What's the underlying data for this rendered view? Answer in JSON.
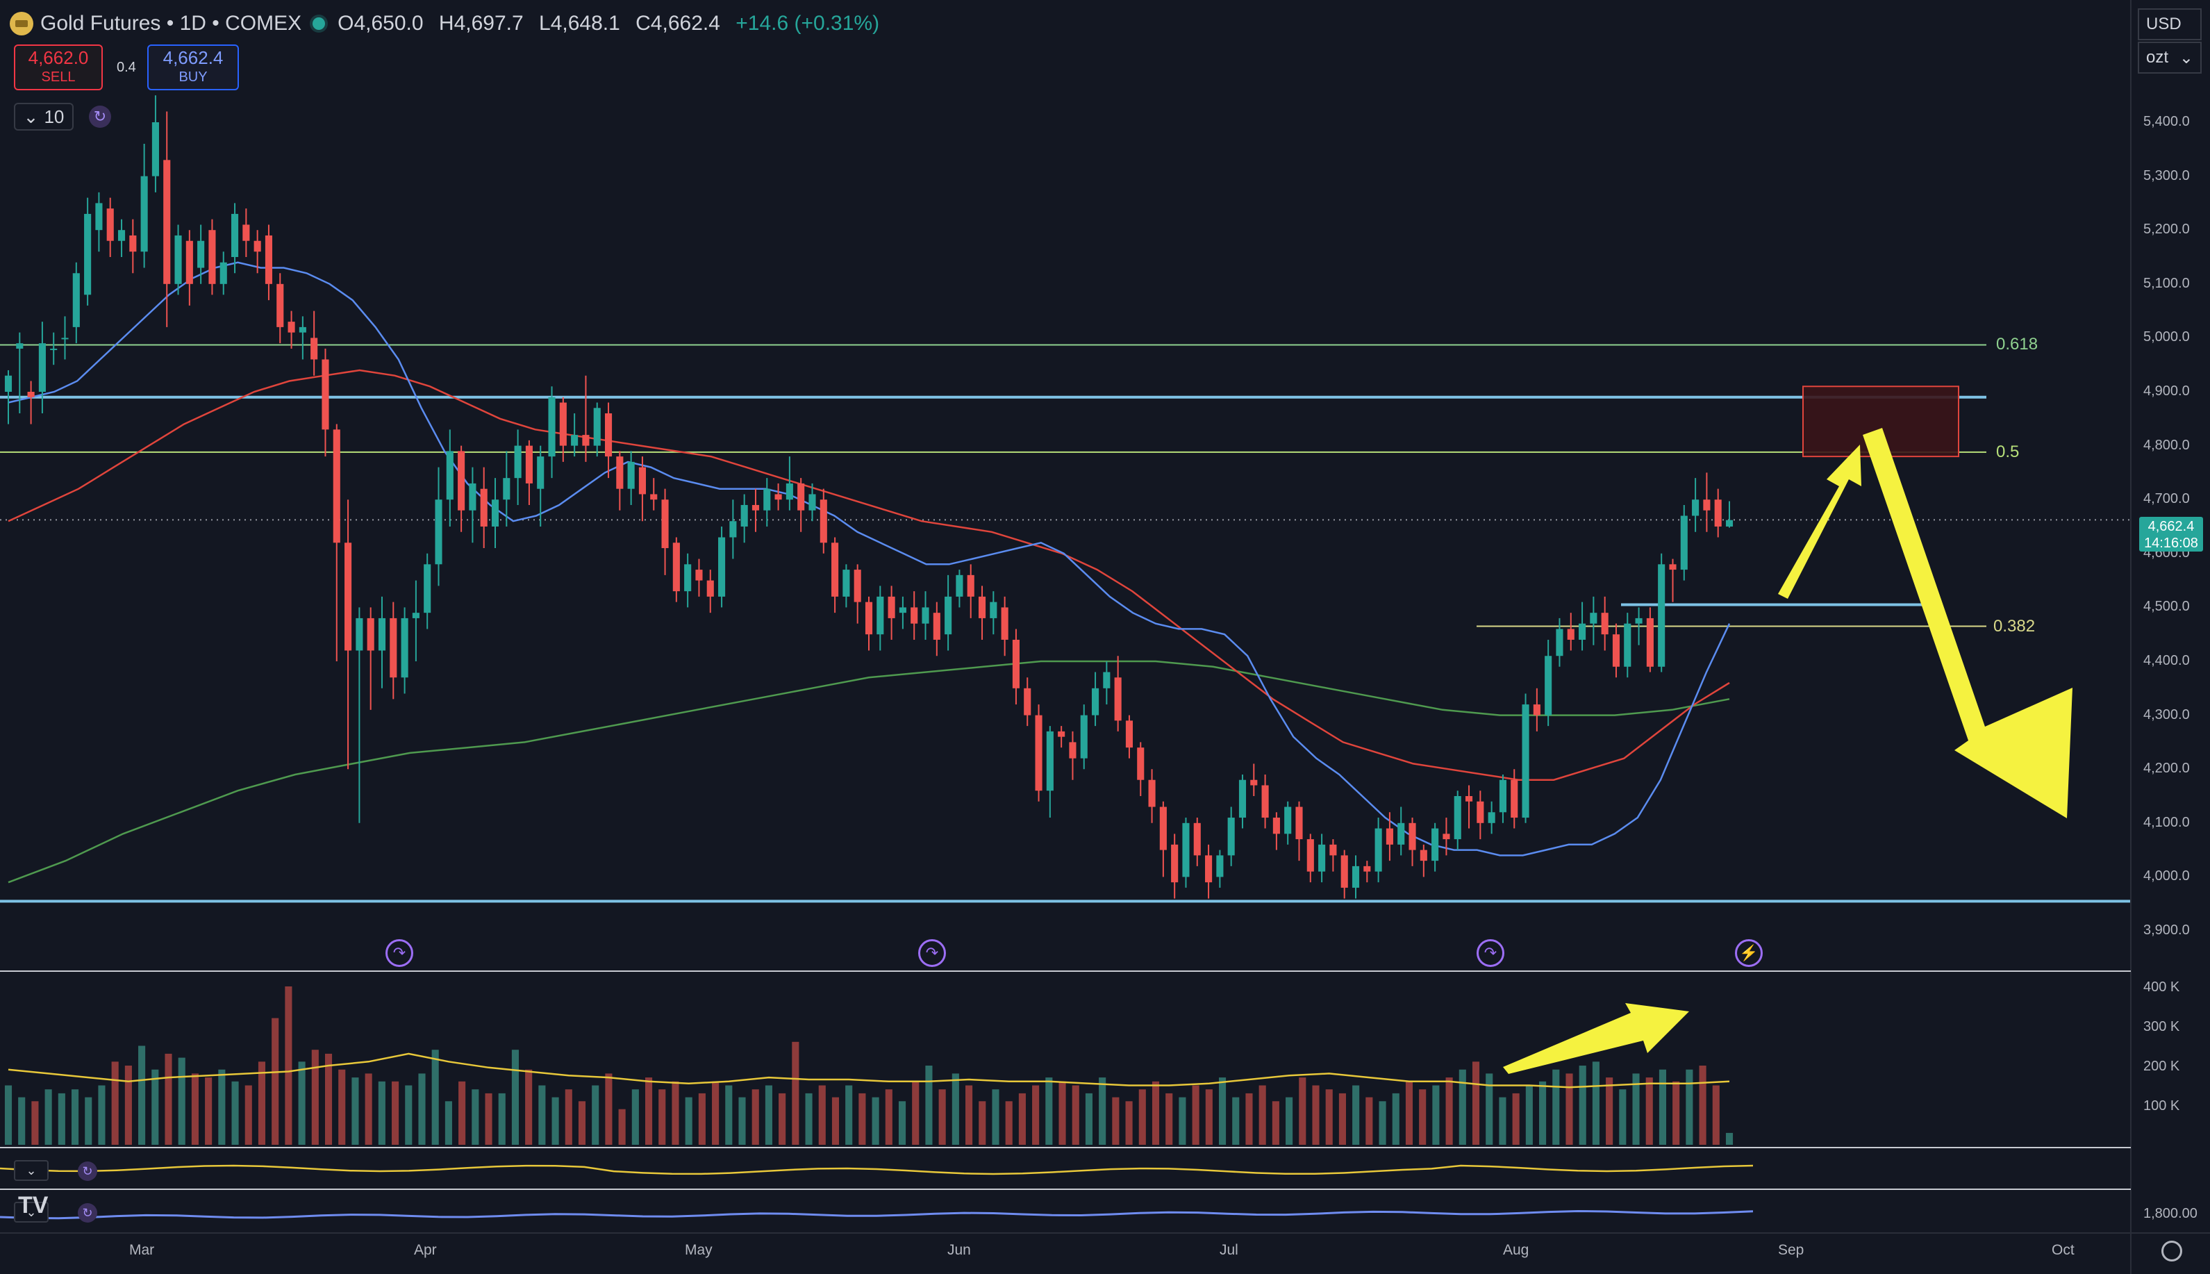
{
  "header": {
    "title": "Gold Futures • 1D • COMEX",
    "open": "O4,650.0",
    "high": "H4,697.7",
    "low": "L4,648.1",
    "close": "C4,662.4",
    "change": "+14.6 (+0.31%)"
  },
  "trade": {
    "sell_price": "4,662.0",
    "sell_label": "SELL",
    "spread": "0.4",
    "buy_price": "4,662.4",
    "buy_label": "BUY"
  },
  "toolbar": {
    "interval_value": "10"
  },
  "scale": {
    "currency": "USD",
    "unit": "ozt"
  },
  "last_price": {
    "value": "4,662.4",
    "countdown": "14:16:08"
  },
  "colors": {
    "up": "#26a69a",
    "down": "#ef5350",
    "ma_fast": "#5b8cf0",
    "ma_mid": "#e0453c",
    "ma_slow": "#4f9a4f",
    "fib": "#8fd18f",
    "level": "#7ec3e6",
    "arrow": "#f5f240",
    "zone": "#3a1418"
  },
  "icons": [
    "gold-logo-icon",
    "live-dot-icon",
    "chevron-down-icon",
    "refresh-icon",
    "event-icon",
    "lightning-icon",
    "settings-gear-icon",
    "tradingview-logo-icon"
  ],
  "chart_data": {
    "type": "candlestick",
    "x_ticks": [
      "Mar",
      "Apr",
      "May",
      "Jun",
      "Jul",
      "Aug",
      "Sep",
      "Oct"
    ],
    "y_ticks": [
      "5,400.0",
      "5,300.0",
      "5,200.0",
      "5,100.0",
      "5,000.0",
      "4,900.0",
      "4,800.0",
      "4,700.0",
      "4,600.0",
      "4,500.0",
      "4,400.0",
      "4,300.0",
      "4,200.0",
      "4,100.0",
      "4,000.0",
      "3,900.0"
    ],
    "volume_ticks": [
      "400 K",
      "300 K",
      "200 K",
      "100 K"
    ],
    "indicator_tick": "1,800.00",
    "fib_levels": [
      {
        "label": "0.618",
        "price": 4987
      },
      {
        "label": "0.5",
        "price": 4788
      },
      {
        "label": "0.382",
        "price": 4465
      }
    ],
    "horizontal_levels": [
      4890,
      4505,
      3955
    ],
    "resistance_zone": {
      "from": 4780,
      "to": 4910
    },
    "candles": [
      [
        4900,
        4930,
        4850,
        4940,
        4840
      ],
      [
        4980,
        4990,
        4880,
        5010,
        4860
      ],
      [
        4900,
        4890,
        4860,
        4920,
        4840
      ],
      [
        4900,
        4990,
        4880,
        5030,
        4860
      ],
      [
        4980,
        4980,
        4970,
        5010,
        4950
      ],
      [
        5000,
        5000,
        4980,
        5040,
        4960
      ],
      [
        5020,
        5120,
        5000,
        5140,
        4990
      ],
      [
        5080,
        5230,
        5070,
        5260,
        5060
      ],
      [
        5200,
        5250,
        5180,
        5270,
        5160
      ],
      [
        5240,
        5180,
        5160,
        5260,
        5150
      ],
      [
        5180,
        5200,
        5170,
        5220,
        5150
      ],
      [
        5190,
        5160,
        5140,
        5220,
        5120
      ],
      [
        5160,
        5300,
        5140,
        5360,
        5130
      ],
      [
        5300,
        5400,
        5280,
        5450,
        5270
      ],
      [
        5330,
        5100,
        5080,
        5420,
        5020
      ],
      [
        5100,
        5190,
        5090,
        5210,
        5080
      ],
      [
        5180,
        5100,
        5090,
        5200,
        5060
      ],
      [
        5130,
        5180,
        5120,
        5210,
        5100
      ],
      [
        5200,
        5100,
        5090,
        5220,
        5080
      ],
      [
        5100,
        5140,
        5090,
        5160,
        5080
      ],
      [
        5150,
        5230,
        5130,
        5250,
        5120
      ],
      [
        5210,
        5180,
        5170,
        5240,
        5150
      ],
      [
        5180,
        5160,
        5140,
        5200,
        5120
      ],
      [
        5190,
        5100,
        5080,
        5210,
        5070
      ],
      [
        5100,
        5020,
        5010,
        5120,
        4990
      ],
      [
        5030,
        5010,
        5000,
        5050,
        4980
      ],
      [
        5010,
        5020,
        4990,
        5040,
        4960
      ],
      [
        5000,
        4960,
        4950,
        5050,
        4930
      ],
      [
        4960,
        4830,
        4800,
        4980,
        4780
      ],
      [
        4830,
        4620,
        4600,
        4840,
        4400
      ],
      [
        4620,
        4420,
        4410,
        4700,
        4200
      ],
      [
        4420,
        4480,
        4400,
        4500,
        4100
      ],
      [
        4480,
        4420,
        4380,
        4500,
        4310
      ],
      [
        4420,
        4480,
        4400,
        4520,
        4350
      ],
      [
        4480,
        4370,
        4350,
        4510,
        4330
      ],
      [
        4370,
        4480,
        4360,
        4500,
        4340
      ],
      [
        4480,
        4490,
        4470,
        4550,
        4400
      ],
      [
        4490,
        4580,
        4480,
        4600,
        4460
      ],
      [
        4580,
        4700,
        4570,
        4760,
        4540
      ],
      [
        4700,
        4790,
        4690,
        4830,
        4650
      ],
      [
        4790,
        4680,
        4670,
        4800,
        4640
      ],
      [
        4680,
        4730,
        4660,
        4760,
        4620
      ],
      [
        4720,
        4650,
        4620,
        4760,
        4610
      ],
      [
        4650,
        4700,
        4640,
        4740,
        4610
      ],
      [
        4700,
        4740,
        4690,
        4790,
        4650
      ],
      [
        4740,
        4800,
        4720,
        4830,
        4690
      ],
      [
        4800,
        4730,
        4700,
        4810,
        4690
      ],
      [
        4720,
        4780,
        4700,
        4800,
        4650
      ],
      [
        4780,
        4890,
        4760,
        4910,
        4740
      ],
      [
        4880,
        4800,
        4790,
        4890,
        4770
      ],
      [
        4800,
        4820,
        4790,
        4860,
        4780
      ],
      [
        4820,
        4800,
        4780,
        4930,
        4770
      ],
      [
        4800,
        4870,
        4790,
        4880,
        4780
      ],
      [
        4860,
        4780,
        4760,
        4880,
        4740
      ],
      [
        4780,
        4720,
        4700,
        4790,
        4680
      ],
      [
        4720,
        4770,
        4700,
        4790,
        4690
      ],
      [
        4760,
        4710,
        4680,
        4780,
        4660
      ],
      [
        4710,
        4700,
        4690,
        4740,
        4680
      ],
      [
        4700,
        4610,
        4580,
        4720,
        4560
      ],
      [
        4620,
        4530,
        4520,
        4630,
        4510
      ],
      [
        4530,
        4580,
        4520,
        4600,
        4500
      ],
      [
        4570,
        4550,
        4540,
        4590,
        4520
      ],
      [
        4550,
        4520,
        4500,
        4570,
        4490
      ],
      [
        4520,
        4630,
        4510,
        4650,
        4500
      ],
      [
        4630,
        4660,
        4610,
        4700,
        4590
      ],
      [
        4650,
        4690,
        4640,
        4710,
        4620
      ],
      [
        4690,
        4680,
        4660,
        4720,
        4640
      ],
      [
        4680,
        4720,
        4670,
        4740,
        4650
      ],
      [
        4710,
        4700,
        4690,
        4730,
        4680
      ],
      [
        4700,
        4730,
        4690,
        4780,
        4680
      ],
      [
        4730,
        4680,
        4660,
        4740,
        4640
      ],
      [
        4680,
        4710,
        4670,
        4730,
        4660
      ],
      [
        4700,
        4620,
        4610,
        4720,
        4600
      ],
      [
        4620,
        4520,
        4510,
        4630,
        4490
      ],
      [
        4520,
        4570,
        4510,
        4580,
        4500
      ],
      [
        4570,
        4510,
        4500,
        4580,
        4470
      ],
      [
        4510,
        4450,
        4440,
        4520,
        4420
      ],
      [
        4450,
        4520,
        4440,
        4540,
        4420
      ],
      [
        4520,
        4480,
        4450,
        4540,
        4440
      ],
      [
        4490,
        4500,
        4480,
        4520,
        4460
      ],
      [
        4500,
        4470,
        4450,
        4530,
        4440
      ],
      [
        4470,
        4500,
        4460,
        4530,
        4440
      ],
      [
        4490,
        4440,
        4420,
        4510,
        4410
      ],
      [
        4450,
        4520,
        4440,
        4560,
        4420
      ],
      [
        4520,
        4560,
        4510,
        4570,
        4500
      ],
      [
        4560,
        4520,
        4490,
        4580,
        4480
      ],
      [
        4520,
        4480,
        4460,
        4540,
        4440
      ],
      [
        4480,
        4510,
        4460,
        4530,
        4450
      ],
      [
        4500,
        4440,
        4420,
        4520,
        4410
      ],
      [
        4440,
        4350,
        4340,
        4460,
        4320
      ],
      [
        4350,
        4300,
        4290,
        4370,
        4280
      ],
      [
        4300,
        4160,
        4150,
        4320,
        4140
      ],
      [
        4160,
        4270,
        4150,
        4280,
        4110
      ],
      [
        4270,
        4260,
        4250,
        4280,
        4240
      ],
      [
        4250,
        4220,
        4200,
        4270,
        4180
      ],
      [
        4220,
        4300,
        4210,
        4320,
        4200
      ],
      [
        4300,
        4350,
        4290,
        4380,
        4280
      ],
      [
        4350,
        4380,
        4340,
        4400,
        4320
      ],
      [
        4370,
        4290,
        4280,
        4410,
        4270
      ],
      [
        4290,
        4240,
        4230,
        4300,
        4220
      ],
      [
        4240,
        4180,
        4160,
        4250,
        4150
      ],
      [
        4180,
        4130,
        4120,
        4200,
        4100
      ],
      [
        4130,
        4050,
        4020,
        4140,
        4000
      ],
      [
        4060,
        3990,
        3980,
        4080,
        3960
      ],
      [
        4000,
        4100,
        3990,
        4110,
        3980
      ],
      [
        4100,
        4040,
        4030,
        4110,
        4020
      ],
      [
        4040,
        3990,
        3980,
        4060,
        3960
      ],
      [
        4000,
        4040,
        3990,
        4050,
        3980
      ],
      [
        4040,
        4110,
        4030,
        4130,
        4020
      ],
      [
        4110,
        4180,
        4100,
        4190,
        4090
      ],
      [
        4180,
        4170,
        4160,
        4210,
        4150
      ],
      [
        4170,
        4110,
        4100,
        4190,
        4090
      ],
      [
        4110,
        4080,
        4070,
        4120,
        4050
      ],
      [
        4080,
        4130,
        4070,
        4140,
        4060
      ],
      [
        4130,
        4070,
        4050,
        4140,
        4030
      ],
      [
        4070,
        4010,
        4000,
        4080,
        3990
      ],
      [
        4010,
        4060,
        4000,
        4080,
        3990
      ],
      [
        4060,
        4040,
        4030,
        4070,
        4010
      ],
      [
        4040,
        3980,
        3970,
        4050,
        3960
      ],
      [
        3980,
        4020,
        3970,
        4040,
        3960
      ],
      [
        4020,
        4010,
        4000,
        4030,
        3990
      ],
      [
        4010,
        4090,
        4000,
        4110,
        3990
      ],
      [
        4090,
        4060,
        4040,
        4120,
        4030
      ],
      [
        4060,
        4100,
        4050,
        4130,
        4040
      ],
      [
        4100,
        4050,
        4030,
        4110,
        4020
      ],
      [
        4050,
        4030,
        4010,
        4060,
        4000
      ],
      [
        4030,
        4090,
        4020,
        4100,
        4010
      ],
      [
        4080,
        4070,
        4060,
        4110,
        4040
      ],
      [
        4070,
        4150,
        4060,
        4160,
        4050
      ],
      [
        4150,
        4140,
        4110,
        4170,
        4090
      ],
      [
        4140,
        4100,
        4080,
        4160,
        4070
      ],
      [
        4100,
        4120,
        4090,
        4140,
        4080
      ],
      [
        4120,
        4180,
        4110,
        4190,
        4100
      ],
      [
        4180,
        4110,
        4100,
        4200,
        4090
      ],
      [
        4110,
        4320,
        4100,
        4340,
        4100
      ],
      [
        4320,
        4300,
        4280,
        4350,
        4270
      ],
      [
        4300,
        4410,
        4290,
        4440,
        4280
      ],
      [
        4410,
        4460,
        4400,
        4480,
        4390
      ],
      [
        4460,
        4440,
        4420,
        4490,
        4420
      ],
      [
        4440,
        4470,
        4430,
        4510,
        4420
      ],
      [
        4470,
        4490,
        4460,
        4520,
        4430
      ],
      [
        4490,
        4450,
        4440,
        4520,
        4420
      ],
      [
        4450,
        4390,
        4380,
        4470,
        4370
      ],
      [
        4390,
        4470,
        4380,
        4490,
        4370
      ],
      [
        4470,
        4480,
        4450,
        4500,
        4430
      ],
      [
        4480,
        4390,
        4380,
        4500,
        4380
      ],
      [
        4390,
        4580,
        4380,
        4600,
        4380
      ],
      [
        4580,
        4570,
        4560,
        4590,
        4510
      ],
      [
        4570,
        4670,
        4560,
        4690,
        4550
      ],
      [
        4670,
        4700,
        4650,
        4740,
        4640
      ],
      [
        4700,
        4680,
        4650,
        4750,
        4640
      ],
      [
        4700,
        4650,
        4640,
        4720,
        4630
      ],
      [
        4650,
        4662,
        4648,
        4697,
        4648
      ]
    ],
    "ma_fast": [
      4880,
      4890,
      4900,
      4920,
      4960,
      5000,
      5040,
      5080,
      5110,
      5130,
      5140,
      5130,
      5130,
      5120,
      5100,
      5070,
      5020,
      4960,
      4870,
      4790,
      4730,
      4690,
      4660,
      4670,
      4690,
      4720,
      4750,
      4770,
      4760,
      4740,
      4730,
      4720,
      4720,
      4720,
      4710,
      4690,
      4670,
      4640,
      4620,
      4600,
      4580,
      4580,
      4590,
      4600,
      4610,
      4620,
      4600,
      4560,
      4520,
      4490,
      4470,
      4460,
      4460,
      4450,
      4410,
      4330,
      4260,
      4220,
      4190,
      4150,
      4110,
      4080,
      4060,
      4050,
      4050,
      4040,
      4040,
      4050,
      4060,
      4060,
      4080,
      4110,
      4180,
      4280,
      4380,
      4470
    ],
    "ma_mid": [
      4660,
      4690,
      4720,
      4760,
      4800,
      4840,
      4870,
      4900,
      4920,
      4930,
      4940,
      4930,
      4910,
      4880,
      4850,
      4830,
      4820,
      4810,
      4800,
      4790,
      4780,
      4760,
      4740,
      4720,
      4700,
      4680,
      4660,
      4650,
      4640,
      4620,
      4600,
      4570,
      4530,
      4480,
      4430,
      4380,
      4330,
      4290,
      4250,
      4230,
      4210,
      4200,
      4190,
      4180,
      4180,
      4200,
      4220,
      4270,
      4320,
      4360
    ],
    "ma_slow": [
      3990,
      4030,
      4080,
      4120,
      4160,
      4190,
      4210,
      4230,
      4240,
      4250,
      4270,
      4290,
      4310,
      4330,
      4350,
      4370,
      4380,
      4390,
      4400,
      4400,
      4400,
      4390,
      4370,
      4350,
      4330,
      4310,
      4300,
      4300,
      4300,
      4310,
      4330
    ],
    "volume": [
      150,
      120,
      110,
      140,
      130,
      140,
      120,
      150,
      210,
      200,
      250,
      190,
      230,
      220,
      180,
      170,
      190,
      160,
      150,
      210,
      320,
      400,
      210,
      240,
      230,
      190,
      170,
      180,
      160,
      160,
      150,
      180,
      240,
      110,
      160,
      140,
      130,
      130,
      240,
      190,
      150,
      120,
      140,
      110,
      150,
      180,
      90,
      140,
      170,
      140,
      160,
      120,
      130,
      160,
      150,
      120,
      140,
      150,
      130,
      260,
      130,
      150,
      120,
      150,
      130,
      120,
      140,
      110,
      160,
      200,
      140,
      180,
      150,
      110,
      140,
      110,
      130,
      150,
      170,
      160,
      150,
      130,
      170,
      120,
      110,
      140,
      160,
      130,
      120,
      150,
      140,
      170,
      120,
      130,
      150,
      110,
      120,
      170,
      150,
      140,
      130,
      150,
      120,
      110,
      130,
      160,
      140,
      150,
      170,
      190,
      210,
      180,
      120,
      130,
      150,
      160,
      190,
      180,
      200,
      210,
      170,
      140,
      180,
      170,
      190,
      160,
      190,
      200,
      150,
      30
    ],
    "volume_ma": [
      190,
      180,
      170,
      160,
      170,
      175,
      180,
      185,
      200,
      210,
      230,
      210,
      195,
      185,
      175,
      170,
      160,
      155,
      160,
      170,
      165,
      165,
      160,
      160,
      165,
      160,
      160,
      155,
      150,
      150,
      155,
      165,
      175,
      180,
      170,
      160,
      160,
      150,
      150,
      145,
      150,
      155,
      155,
      160
    ],
    "notes": [
      "Fibonacci retracement",
      "Projected move arrows"
    ]
  }
}
